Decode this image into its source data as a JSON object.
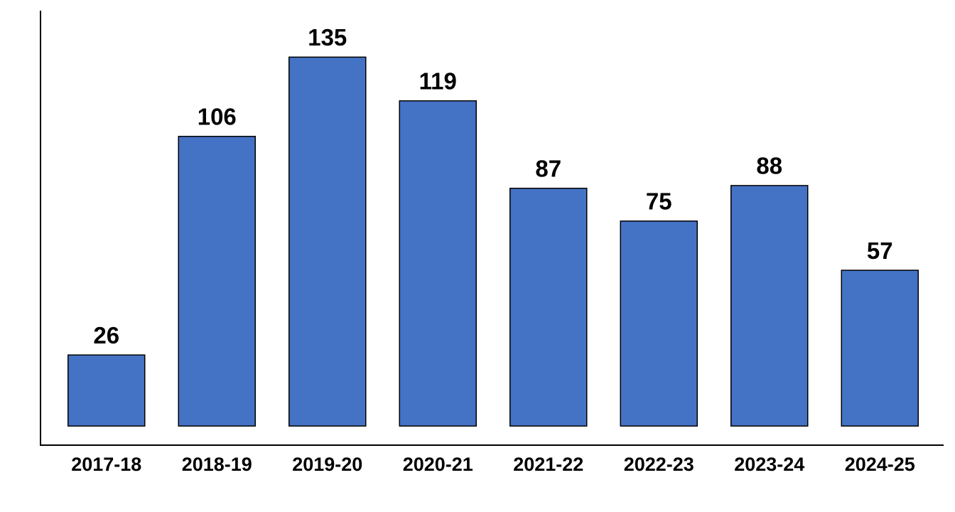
{
  "chart_data": {
    "type": "bar",
    "categories": [
      "2017-18",
      "2018-19",
      "2019-20",
      "2020-21",
      "2021-22",
      "2022-23",
      "2023-24",
      "2024-25"
    ],
    "values": [
      26,
      106,
      135,
      119,
      87,
      75,
      88,
      57
    ],
    "color": "#4472c4",
    "ylim": [
      -7,
      152
    ]
  }
}
